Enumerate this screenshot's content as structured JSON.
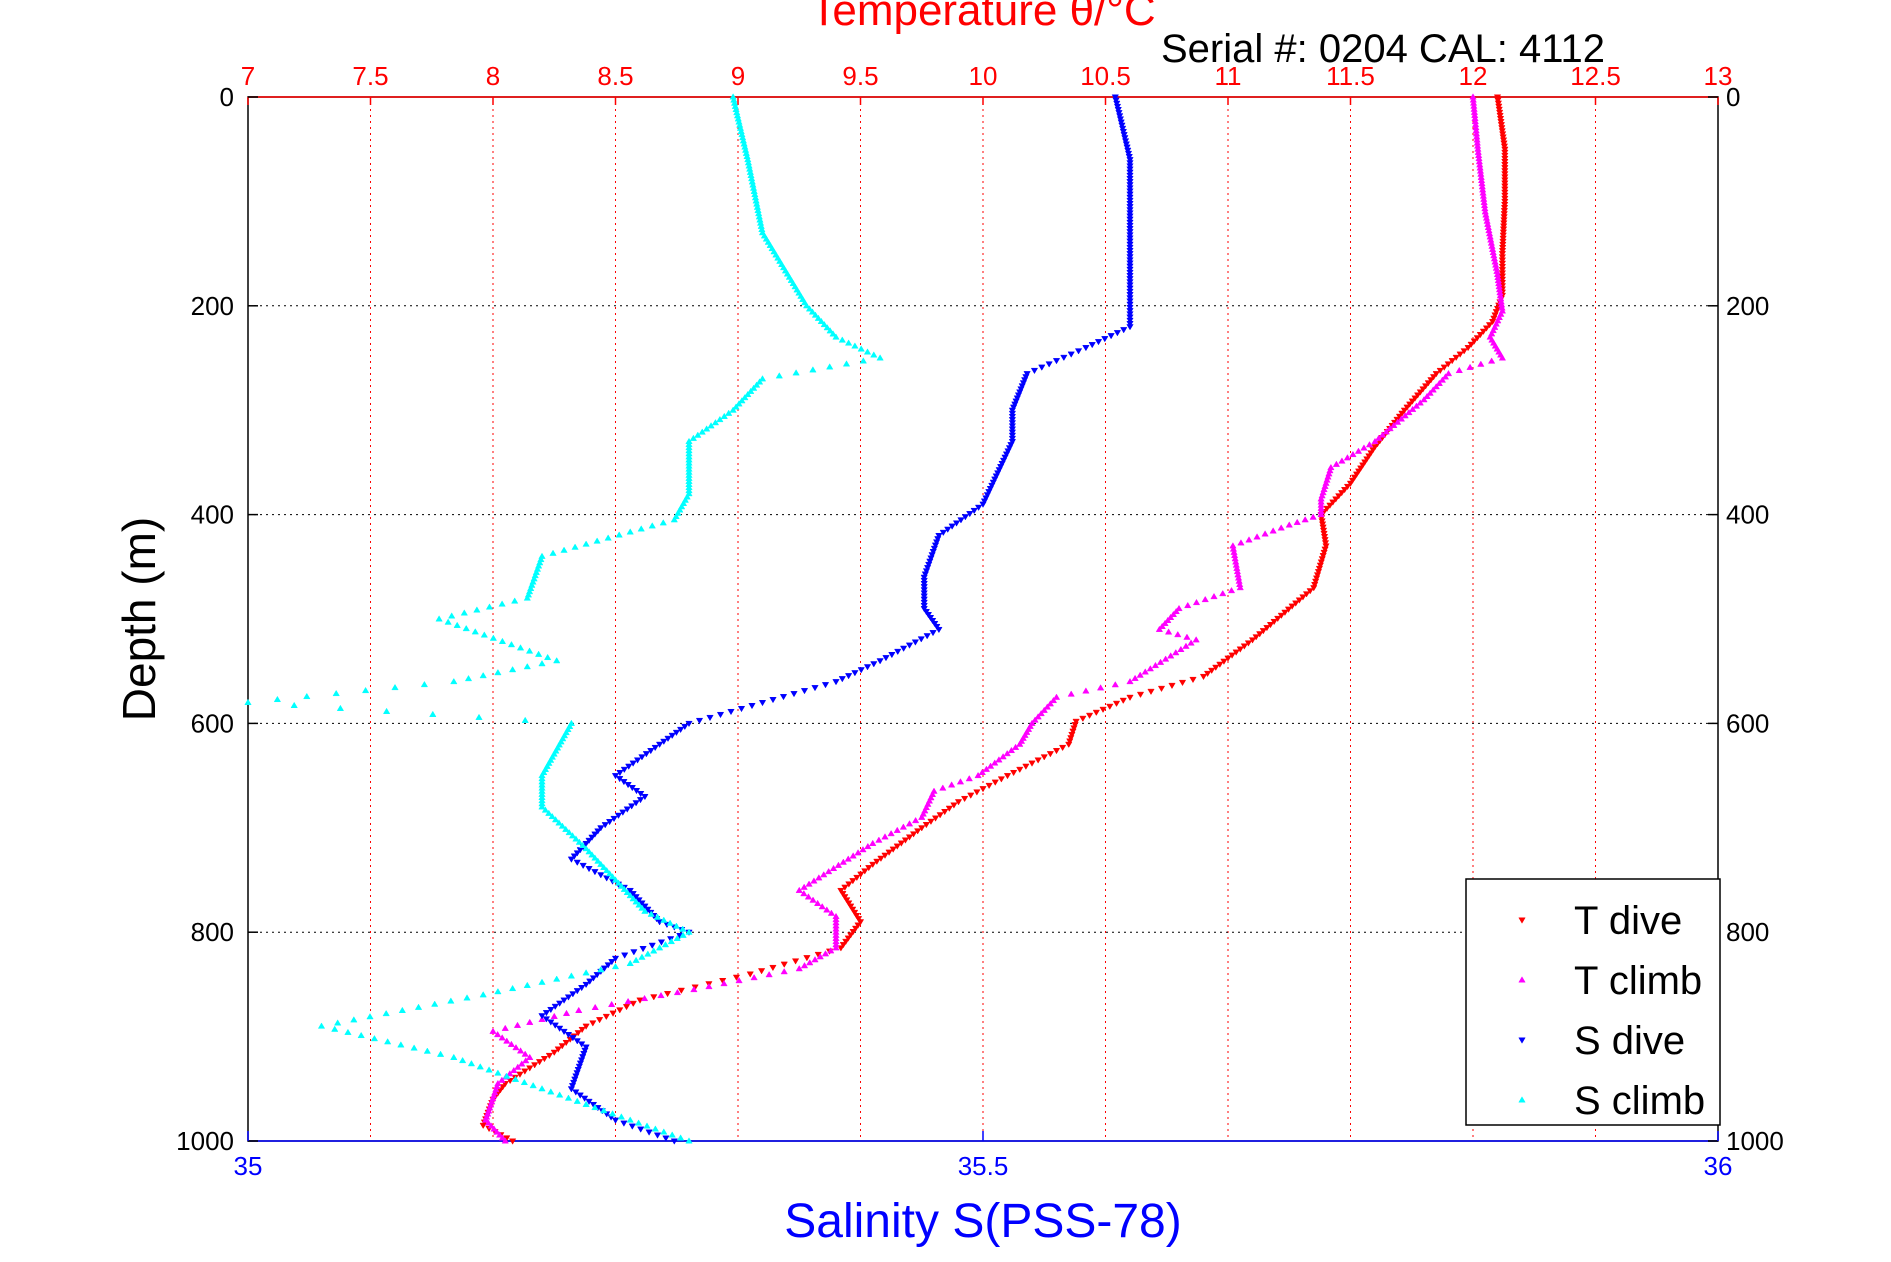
{
  "chart_data": {
    "type": "scatter",
    "title": "Temperature θ/°C",
    "subtitle": "Serial #: 0204  CAL: 4112",
    "xlabel": "Salinity S(PSS-78)",
    "ylabel": "Depth (m)",
    "x_top": {
      "label": "Temperature θ/°C",
      "range": [
        7,
        13
      ],
      "ticks": [
        "7",
        "7.5",
        "8",
        "8.5",
        "9",
        "9.5",
        "10",
        "10.5",
        "11",
        "11.5",
        "12",
        "12.5",
        "13"
      ],
      "color": "#ff0000"
    },
    "x_bottom": {
      "label": "Salinity S(PSS-78)",
      "range": [
        35,
        36
      ],
      "ticks": [
        "35",
        "35.5",
        "36"
      ],
      "color": "#0000ff"
    },
    "y": {
      "label": "Depth (m)",
      "range": [
        0,
        1000
      ],
      "reversed": true,
      "ticks": [
        "0",
        "200",
        "400",
        "600",
        "800",
        "1000"
      ]
    },
    "grid": true,
    "legend_position": "bottom-right",
    "series": [
      {
        "name": "T dive",
        "axis": "top",
        "color": "#ff0000",
        "marker": "triangle-down",
        "points": [
          [
            12.1,
            0
          ],
          [
            12.13,
            50
          ],
          [
            12.13,
            100
          ],
          [
            12.12,
            150
          ],
          [
            12.12,
            190
          ],
          [
            12.08,
            215
          ],
          [
            11.98,
            240
          ],
          [
            11.85,
            265
          ],
          [
            11.72,
            300
          ],
          [
            11.6,
            335
          ],
          [
            11.5,
            370
          ],
          [
            11.38,
            400
          ],
          [
            11.4,
            430
          ],
          [
            11.35,
            470
          ],
          [
            11.1,
            520
          ],
          [
            10.9,
            555
          ],
          [
            10.6,
            575
          ],
          [
            10.38,
            598
          ],
          [
            10.35,
            620
          ],
          [
            10.1,
            650
          ],
          [
            9.9,
            675
          ],
          [
            9.75,
            700
          ],
          [
            9.55,
            735
          ],
          [
            9.42,
            760
          ],
          [
            9.5,
            790
          ],
          [
            9.42,
            815
          ],
          [
            9.05,
            840
          ],
          [
            8.6,
            865
          ],
          [
            8.38,
            890
          ],
          [
            8.25,
            915
          ],
          [
            8.05,
            945
          ],
          [
            8.0,
            960
          ],
          [
            7.96,
            985
          ],
          [
            8.08,
            1000
          ]
        ]
      },
      {
        "name": "T climb",
        "axis": "top",
        "color": "#ff00ff",
        "marker": "triangle-up",
        "points": [
          [
            12.0,
            0
          ],
          [
            12.02,
            50
          ],
          [
            12.05,
            110
          ],
          [
            12.1,
            170
          ],
          [
            12.12,
            205
          ],
          [
            12.07,
            230
          ],
          [
            12.12,
            250
          ],
          [
            11.9,
            265
          ],
          [
            11.8,
            290
          ],
          [
            11.6,
            330
          ],
          [
            11.42,
            355
          ],
          [
            11.38,
            385
          ],
          [
            11.38,
            400
          ],
          [
            11.25,
            410
          ],
          [
            11.02,
            430
          ],
          [
            11.05,
            470
          ],
          [
            10.8,
            490
          ],
          [
            10.72,
            510
          ],
          [
            10.87,
            520
          ],
          [
            10.6,
            560
          ],
          [
            10.3,
            575
          ],
          [
            10.2,
            600
          ],
          [
            10.15,
            620
          ],
          [
            9.98,
            650
          ],
          [
            9.8,
            665
          ],
          [
            9.75,
            690
          ],
          [
            9.55,
            715
          ],
          [
            9.25,
            760
          ],
          [
            9.4,
            785
          ],
          [
            9.4,
            815
          ],
          [
            9.25,
            835
          ],
          [
            8.82,
            855
          ],
          [
            8.35,
            875
          ],
          [
            8.0,
            895
          ],
          [
            8.15,
            920
          ],
          [
            8.02,
            945
          ],
          [
            7.97,
            980
          ],
          [
            8.05,
            1000
          ]
        ]
      },
      {
        "name": "S dive",
        "axis": "bottom",
        "color": "#0000ff",
        "marker": "triangle-down",
        "points": [
          [
            35.59,
            0
          ],
          [
            35.6,
            60
          ],
          [
            35.6,
            120
          ],
          [
            35.6,
            180
          ],
          [
            35.6,
            220
          ],
          [
            35.57,
            240
          ],
          [
            35.53,
            265
          ],
          [
            35.52,
            300
          ],
          [
            35.52,
            330
          ],
          [
            35.51,
            360
          ],
          [
            35.5,
            390
          ],
          [
            35.47,
            420
          ],
          [
            35.46,
            460
          ],
          [
            35.46,
            490
          ],
          [
            35.47,
            510
          ],
          [
            35.43,
            540
          ],
          [
            35.4,
            560
          ],
          [
            35.35,
            580
          ],
          [
            35.3,
            600
          ],
          [
            35.28,
            620
          ],
          [
            35.25,
            650
          ],
          [
            35.27,
            670
          ],
          [
            35.24,
            700
          ],
          [
            35.22,
            730
          ],
          [
            35.26,
            760
          ],
          [
            35.28,
            790
          ],
          [
            35.3,
            800
          ],
          [
            35.25,
            825
          ],
          [
            35.23,
            850
          ],
          [
            35.2,
            880
          ],
          [
            35.23,
            910
          ],
          [
            35.22,
            950
          ],
          [
            35.25,
            980
          ],
          [
            35.29,
            1000
          ]
        ]
      },
      {
        "name": "S climb",
        "axis": "bottom",
        "color": "#00ffff",
        "marker": "triangle-up",
        "points": [
          [
            35.33,
            0
          ],
          [
            35.34,
            60
          ],
          [
            35.35,
            130
          ],
          [
            35.38,
            200
          ],
          [
            35.4,
            230
          ],
          [
            35.43,
            250
          ],
          [
            35.35,
            270
          ],
          [
            35.33,
            300
          ],
          [
            35.3,
            330
          ],
          [
            35.3,
            380
          ],
          [
            35.29,
            405
          ],
          [
            35.2,
            440
          ],
          [
            35.19,
            480
          ],
          [
            35.13,
            500
          ],
          [
            35.21,
            540
          ],
          [
            35.14,
            560
          ],
          [
            35.0,
            580
          ],
          [
            35.22,
            600
          ],
          [
            35.2,
            650
          ],
          [
            35.2,
            680
          ],
          [
            35.23,
            720
          ],
          [
            35.27,
            780
          ],
          [
            35.3,
            800
          ],
          [
            35.26,
            830
          ],
          [
            35.16,
            860
          ],
          [
            35.05,
            890
          ],
          [
            35.14,
            920
          ],
          [
            35.2,
            950
          ],
          [
            35.26,
            980
          ],
          [
            35.3,
            1000
          ]
        ]
      }
    ],
    "legend": [
      "T dive",
      "T climb",
      "S dive",
      "S climb"
    ]
  }
}
